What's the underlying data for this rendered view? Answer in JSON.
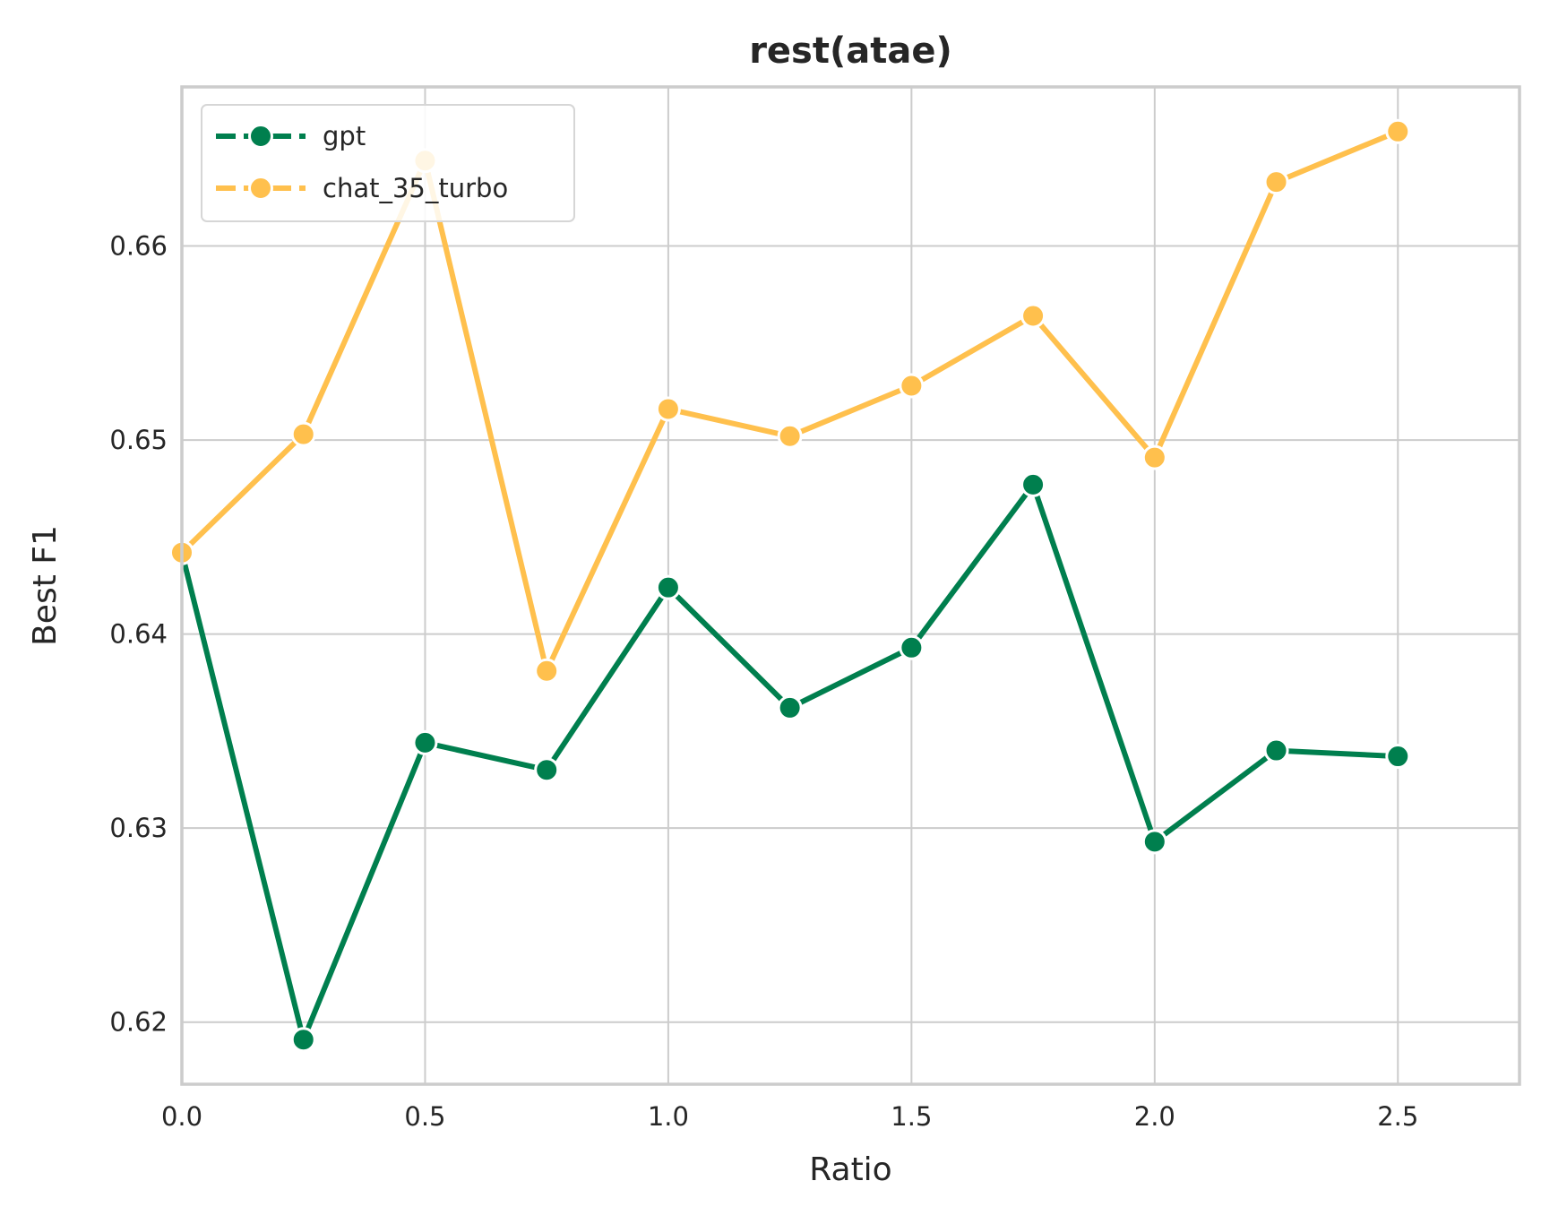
{
  "chart_data": {
    "type": "line",
    "title": "rest(atae)",
    "xlabel": "Ratio",
    "ylabel": "Best F1",
    "xlim": [
      0.0,
      2.75
    ],
    "ylim": [
      0.6168,
      0.6682
    ],
    "xticks": [
      0.0,
      0.5,
      1.0,
      1.5,
      2.0,
      2.5
    ],
    "xtick_labels": [
      "0.0",
      "0.5",
      "1.0",
      "1.5",
      "2.0",
      "2.5"
    ],
    "yticks": [
      0.62,
      0.63,
      0.64,
      0.65,
      0.66
    ],
    "ytick_labels": [
      "0.62",
      "0.63",
      "0.64",
      "0.65",
      "0.66"
    ],
    "grid": true,
    "legend_position": "top-left",
    "x": [
      0.0,
      0.25,
      0.5,
      0.75,
      1.0,
      1.25,
      1.5,
      1.75,
      2.0,
      2.25,
      2.5
    ],
    "series": [
      {
        "name": "gpt",
        "color": "#007f4e",
        "values": [
          0.6442,
          0.6191,
          0.6344,
          0.633,
          0.6424,
          0.6362,
          0.6393,
          0.6477,
          0.6293,
          0.634,
          0.6337
        ]
      },
      {
        "name": "chat_35_turbo",
        "color": "#ffc04d",
        "values": [
          0.6442,
          0.6503,
          0.6644,
          0.6381,
          0.6516,
          0.6502,
          0.6528,
          0.6564,
          0.6491,
          0.6633,
          0.6659
        ]
      }
    ]
  }
}
